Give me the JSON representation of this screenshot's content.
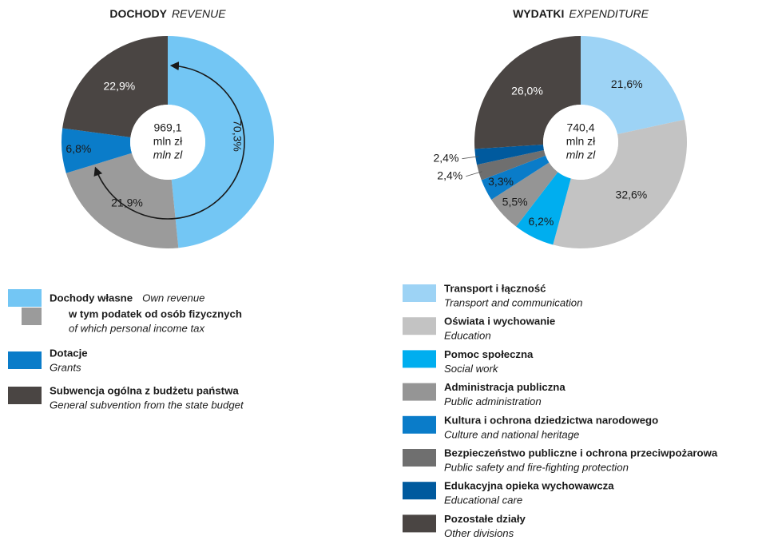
{
  "chart_data": [
    {
      "type": "donut",
      "title": "DOCHODY",
      "title_en": "REVENUE",
      "total": {
        "value": 969.1,
        "label": "969,1"
      },
      "unit": "mln zł",
      "unit_en": "mln zl",
      "categories": [
        "Dochody własne",
        "w tym podatek od osób fizycznych",
        "Dotacje",
        "Subwencja ogólna z budżetu państwa"
      ],
      "categories_en": [
        "Own revenue",
        "of which personal income tax",
        "Grants",
        "General subvention from the state budget"
      ],
      "values": [
        48.4,
        21.9,
        6.8,
        22.9
      ],
      "value_labels": [
        null,
        "21,9%",
        "6,8%",
        "22,9%"
      ],
      "colors": [
        "#73c6f4",
        "#9b9b9b",
        "#0a7cc9",
        "#4a4543"
      ],
      "annotation": {
        "value": 70.3,
        "label": "70,3%"
      }
    },
    {
      "type": "donut",
      "title": "WYDATKI",
      "title_en": "EXPENDITURE",
      "total": {
        "value": 740.4,
        "label": "740,4"
      },
      "unit": "mln zł",
      "unit_en": "mln zl",
      "categories": [
        "Transport i łączność",
        "Oświata i wychowanie",
        "Pomoc społeczna",
        "Administracja publiczna",
        "Kultura i ochrona dziedzictwa narodowego",
        "Bezpieczeństwo publiczne i ochrona przeciwpożarowa",
        "Edukacyjna opieka wychowawcza",
        "Pozostałe działy"
      ],
      "categories_en": [
        "Transport and communication",
        "Education",
        "Social work",
        "Public administration",
        "Culture and national heritage",
        "Public safety and fire-fighting protection",
        "Educational care",
        "Other divisions"
      ],
      "values": [
        21.6,
        32.6,
        6.2,
        5.5,
        3.3,
        2.4,
        2.4,
        26.0
      ],
      "value_labels": [
        "21,6%",
        "32,6%",
        "6,2%",
        "5,5%",
        "3,3%",
        "2,4%",
        "2,4%",
        "26,0%"
      ],
      "colors": [
        "#9dd3f5",
        "#c3c3c3",
        "#00aeef",
        "#959595",
        "#0a7cc9",
        "#6f6f6f",
        "#005a9e",
        "#4a4543"
      ]
    }
  ]
}
